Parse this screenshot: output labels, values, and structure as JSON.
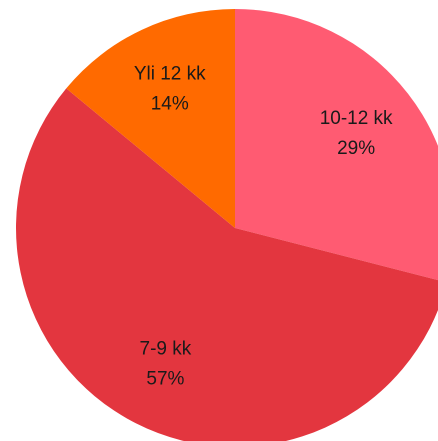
{
  "chart_data": {
    "type": "pie",
    "categories": [
      "10-12 kk",
      "7-9 kk",
      "Yli 12 kk"
    ],
    "values": [
      29,
      57,
      14
    ],
    "value_labels": [
      "29%",
      "57%",
      "14%"
    ],
    "colors": [
      "#ff5b72",
      "#e3363f",
      "#ff6a00"
    ]
  }
}
